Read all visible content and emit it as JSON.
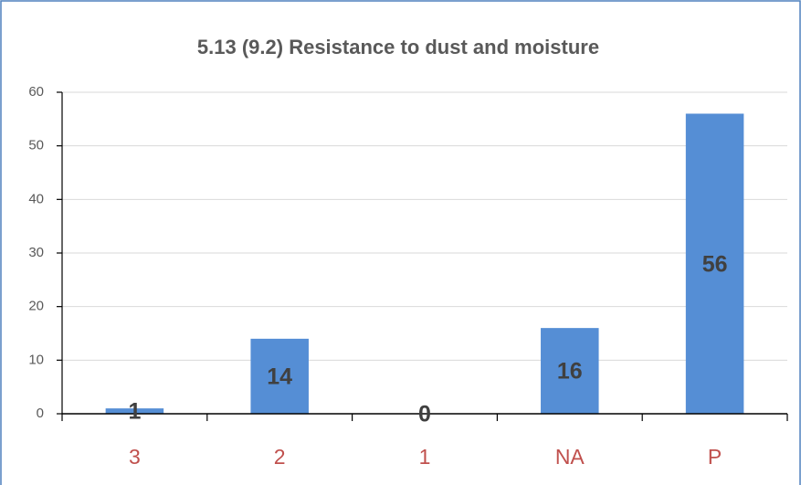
{
  "chart_data": {
    "type": "bar",
    "title": "5.13 (9.2) Resistance to dust and moisture",
    "categories": [
      "3",
      "2",
      "1",
      "NA",
      "P"
    ],
    "values": [
      1,
      14,
      0,
      16,
      56
    ],
    "color": "#558ed5",
    "ylim": [
      0,
      60
    ],
    "yticks": [
      0,
      10,
      20,
      30,
      40,
      50,
      60
    ],
    "grid": true,
    "data_labels": true
  }
}
